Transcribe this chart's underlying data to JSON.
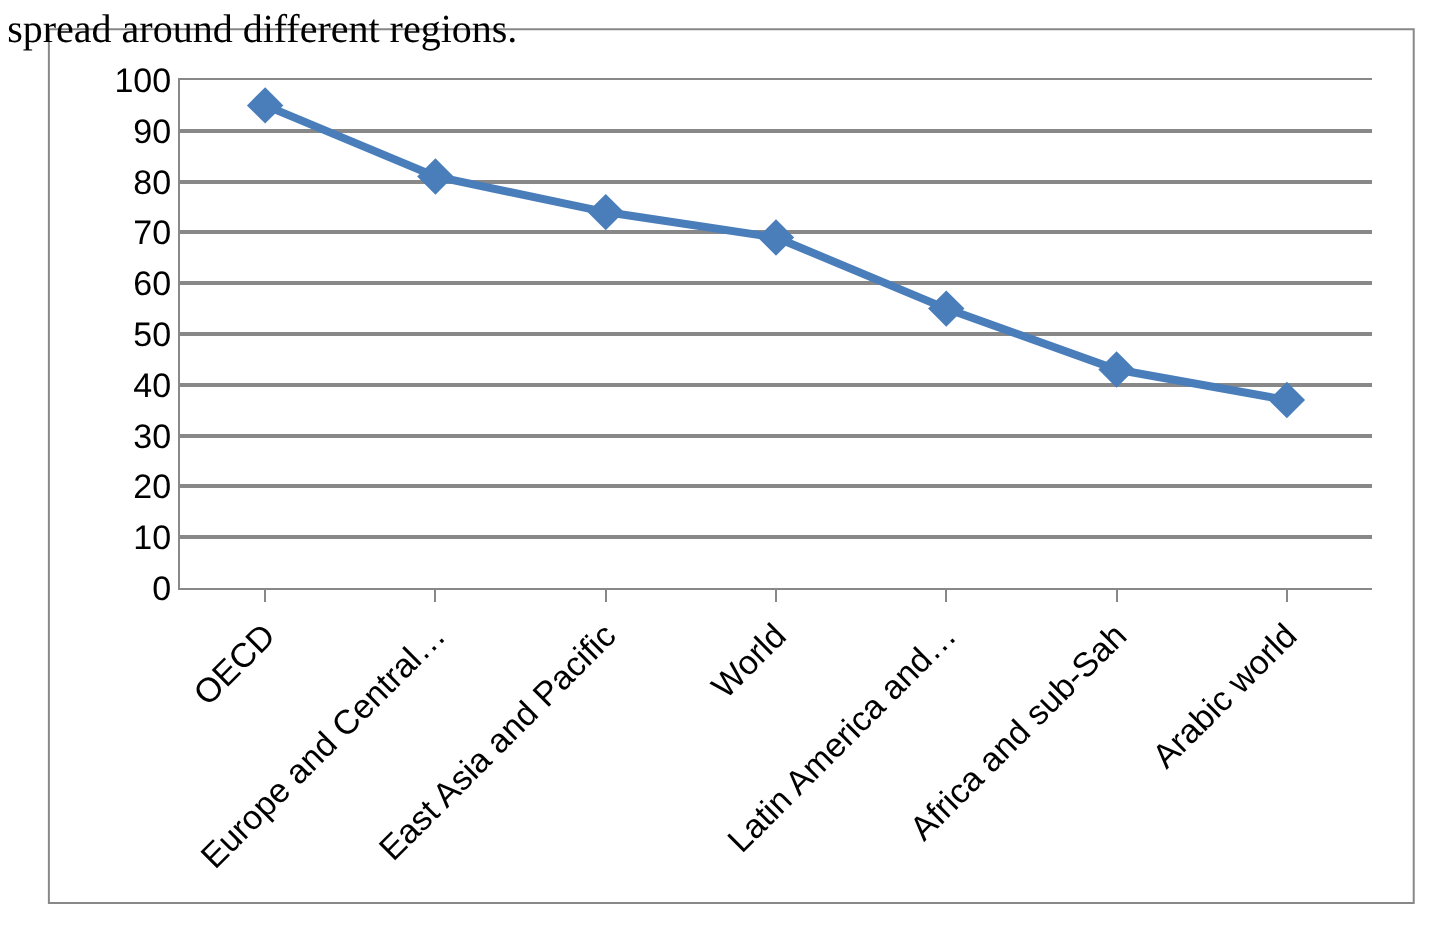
{
  "chart_data": {
    "type": "line",
    "title": "spread around different regions.",
    "categories": [
      "OECD",
      "Europe and Central…",
      "East Asia and Pacific",
      "World",
      "Latin America and…",
      "Africa and sub-Sah",
      "Arabic world"
    ],
    "series": [
      {
        "color": "#4a7ebb",
        "values": [
          95,
          81,
          74,
          69,
          55,
          43,
          37
        ]
      }
    ],
    "ylim": [
      0,
      100
    ],
    "yticks": [
      0,
      10,
      20,
      30,
      40,
      50,
      60,
      70,
      80,
      90,
      100
    ],
    "grid": "y",
    "marker": "diamond",
    "line_style": "solid"
  }
}
